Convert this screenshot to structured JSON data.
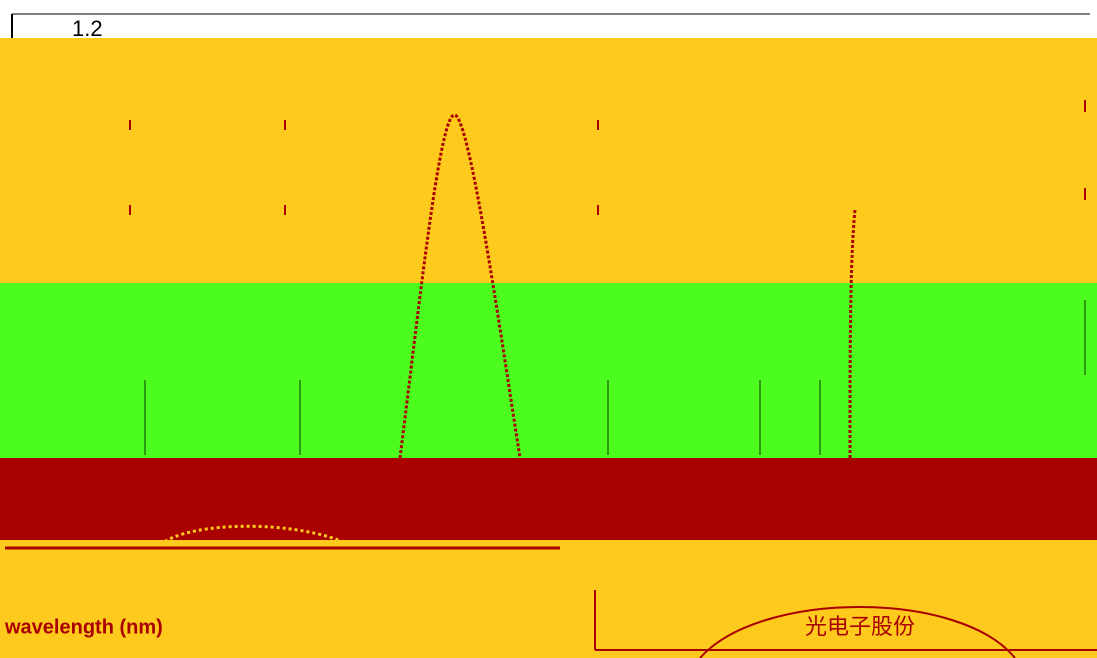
{
  "header": {
    "tick": "1.2"
  },
  "footer": {
    "axis_label": "wavelength (nm)",
    "stamp": "光电子股份"
  }
}
